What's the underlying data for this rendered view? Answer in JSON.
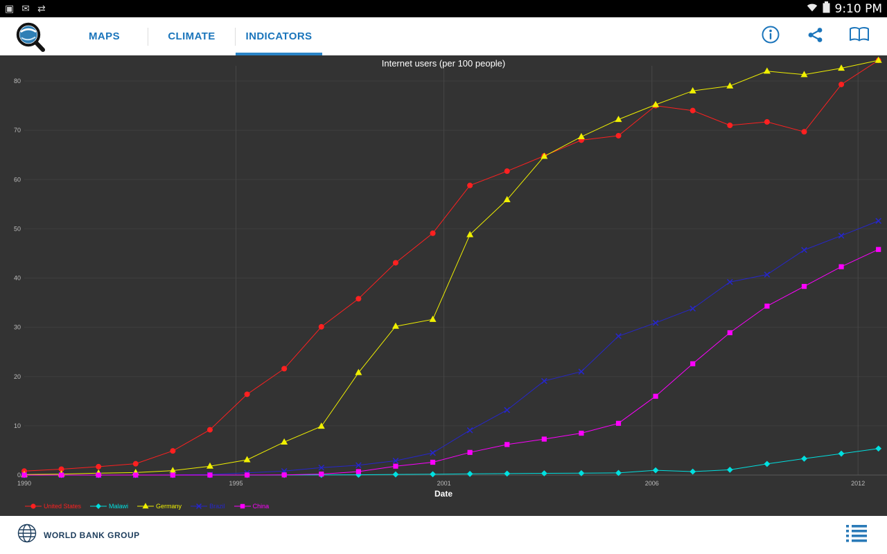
{
  "status_bar": {
    "time": "9:10 PM",
    "left_icons": [
      "screenshot-icon",
      "message-icon",
      "usb-icon"
    ],
    "right_icons": [
      "wifi-icon",
      "battery-icon"
    ]
  },
  "app_bar": {
    "accent_color": "#1b75bb",
    "tabs": [
      {
        "label": "MAPS",
        "active": false
      },
      {
        "label": "CLIMATE",
        "active": false
      },
      {
        "label": "INDICATORS",
        "active": true
      }
    ],
    "actions": [
      "info-icon",
      "share-icon",
      "book-icon"
    ]
  },
  "chart_data": {
    "type": "line",
    "title": "Internet users (per 100 people)",
    "xlabel": "Date",
    "ylabel": "",
    "background": "#333333",
    "grid": true,
    "legend_position": "bottom-left",
    "xlim": [
      1990,
      2013.23
    ],
    "ylim": [
      0,
      80
    ],
    "yticks": [
      0,
      10,
      20,
      30,
      40,
      50,
      60,
      70,
      80
    ],
    "xticks": [
      {
        "label": "1990",
        "year": 1990
      },
      {
        "label": "1995",
        "year": 1995.7
      },
      {
        "label": "2001",
        "year": 2001.3
      },
      {
        "label": "2006",
        "year": 2006.9
      },
      {
        "label": "2012",
        "year": 2012.45
      }
    ],
    "x": [
      1990,
      1991,
      1992,
      1993,
      1994,
      1995,
      1996,
      1997,
      1998,
      1999,
      2000,
      2001,
      2002,
      2003,
      2004,
      2005,
      2006,
      2007,
      2008,
      2009,
      2010,
      2011,
      2012,
      2013
    ],
    "series": [
      {
        "name": "United States",
        "color": "#ff2020",
        "marker": "circle",
        "values": [
          0.8,
          1.2,
          1.7,
          2.3,
          4.9,
          9.2,
          16.4,
          21.6,
          30.1,
          35.8,
          43.1,
          49.1,
          58.8,
          61.7,
          64.8,
          68.0,
          68.9,
          75.0,
          74.0,
          71.0,
          71.7,
          69.7,
          79.3,
          84.2
        ]
      },
      {
        "name": "Malawi",
        "color": "#00e0e0",
        "marker": "diamond",
        "values": [
          0,
          0,
          0,
          0,
          0,
          0,
          0,
          0.01,
          0.03,
          0.06,
          0.13,
          0.17,
          0.24,
          0.3,
          0.35,
          0.38,
          0.43,
          0.97,
          0.7,
          1.07,
          2.26,
          3.33,
          4.35,
          5.38
        ]
      },
      {
        "name": "Germany",
        "color": "#f0f000",
        "marker": "triangle",
        "values": [
          0.1,
          0.2,
          0.4,
          0.5,
          0.9,
          1.8,
          3.1,
          6.7,
          9.9,
          20.8,
          30.2,
          31.6,
          48.8,
          55.9,
          64.7,
          68.7,
          72.2,
          75.2,
          78,
          79,
          82,
          81.3,
          82.6,
          84.2
        ]
      },
      {
        "name": "Brazil",
        "color": "#2626cc",
        "marker": "x",
        "values": [
          0,
          0,
          0,
          0,
          0.04,
          0.1,
          0.45,
          0.8,
          1.5,
          2.0,
          2.9,
          4.5,
          9.1,
          13.2,
          19.1,
          21.0,
          28.2,
          30.9,
          33.8,
          39.2,
          40.7,
          45.7,
          48.6,
          51.6
        ]
      },
      {
        "name": "China",
        "color": "#ff00ff",
        "marker": "square",
        "values": [
          0,
          0,
          0,
          0,
          0,
          0,
          0.01,
          0.03,
          0.2,
          0.7,
          1.8,
          2.6,
          4.6,
          6.2,
          7.3,
          8.5,
          10.5,
          16.0,
          22.6,
          28.9,
          34.3,
          38.3,
          42.3,
          45.8
        ]
      }
    ]
  },
  "footer": {
    "brand": "WORLD BANK GROUP",
    "actions": [
      "list-icon"
    ]
  }
}
